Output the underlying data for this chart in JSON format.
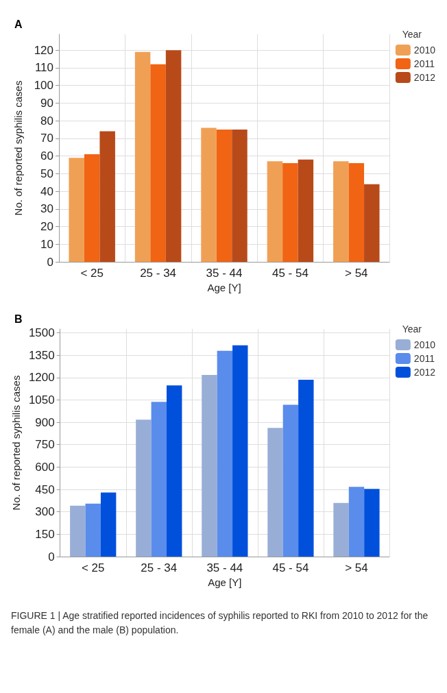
{
  "chart_data": [
    {
      "type": "bar",
      "title": "A",
      "xlabel": "Age [Y]",
      "ylabel": "No. of reported syphilis cases",
      "legend_title": "Year",
      "categories": [
        "< 25",
        "25 - 34",
        "35 - 44",
        "45 - 54",
        "> 54"
      ],
      "series": [
        {
          "name": "2010",
          "color": "#f0a055",
          "values": [
            59,
            119,
            76,
            57,
            57
          ]
        },
        {
          "name": "2011",
          "color": "#f06414",
          "values": [
            61,
            112,
            75,
            56,
            56
          ]
        },
        {
          "name": "2012",
          "color": "#b84a1a",
          "values": [
            74,
            120,
            75,
            58,
            44
          ]
        }
      ],
      "ylim": [
        0,
        129
      ],
      "yticks": [
        0,
        10,
        20,
        30,
        40,
        50,
        60,
        70,
        80,
        90,
        100,
        110,
        120
      ],
      "grid": true,
      "legend": "top right"
    },
    {
      "type": "bar",
      "title": "B",
      "xlabel": "Age [Y]",
      "ylabel": "No. of reported syphilis cases",
      "legend_title": "Year",
      "categories": [
        "< 25",
        "25 - 34",
        "35 - 44",
        "45 - 54",
        "> 54"
      ],
      "series": [
        {
          "name": "2010",
          "color": "#98aed6",
          "values": [
            341,
            917,
            1217,
            862,
            359
          ]
        },
        {
          "name": "2011",
          "color": "#5a8cec",
          "values": [
            355,
            1037,
            1379,
            1018,
            467
          ]
        },
        {
          "name": "2012",
          "color": "#0050dc",
          "values": [
            430,
            1147,
            1416,
            1185,
            454
          ]
        }
      ],
      "ylim": [
        0,
        1525
      ],
      "yticks": [
        0,
        150,
        300,
        450,
        600,
        750,
        900,
        1050,
        1200,
        1350,
        1500
      ],
      "grid": true,
      "legend": "top right",
      "annotations": [
        "FIGURE 1 | Age stratified reported incidences of syphilis reported to RKI from 2010 to 2012 for the female (A) and the male (B) population."
      ]
    }
  ]
}
